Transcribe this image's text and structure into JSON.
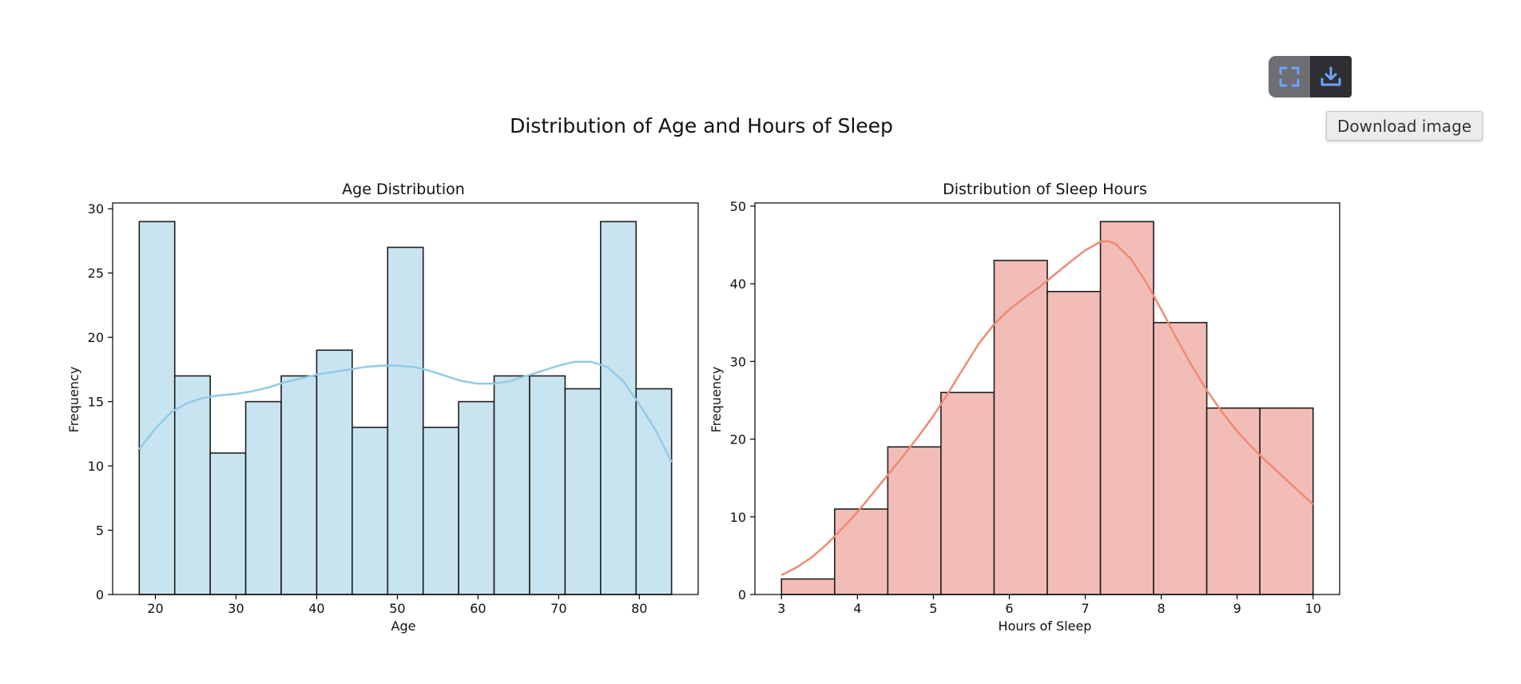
{
  "figure": {
    "suptitle": "Distribution of Age and Hours of Sleep"
  },
  "toolbar": {
    "expand_icon": "fullscreen-icon",
    "download_icon": "download-icon",
    "tooltip": "Download image",
    "icon_color": "#6ba4ff"
  },
  "chart_data": [
    {
      "type": "bar",
      "title": "Age Distribution",
      "xlabel": "Age",
      "ylabel": "Frequency",
      "bin_edges": [
        18,
        22.4,
        26.8,
        31.2,
        35.6,
        40,
        44.4,
        48.8,
        53.2,
        57.6,
        62,
        66.4,
        70.8,
        75.2,
        79.6,
        84
      ],
      "values": [
        29,
        17,
        11,
        15,
        17,
        19,
        13,
        27,
        13,
        15,
        17,
        17,
        16,
        29,
        16
      ],
      "xlim": [
        14.7,
        87.3
      ],
      "ylim": [
        0,
        30.45
      ],
      "xticks": [
        20,
        30,
        40,
        50,
        60,
        70,
        80
      ],
      "yticks": [
        0,
        5,
        10,
        15,
        20,
        25,
        30
      ],
      "kde": {
        "x": [
          18,
          20,
          22,
          24,
          26,
          28,
          30,
          32,
          34,
          36,
          38,
          40,
          42,
          44,
          46,
          48,
          50,
          52,
          54,
          56,
          58,
          60,
          62,
          64,
          66,
          68,
          70,
          72,
          74,
          76,
          78,
          80,
          82,
          84
        ],
        "y": [
          11.3,
          12.9,
          14.2,
          14.9,
          15.3,
          15.5,
          15.6,
          15.8,
          16.1,
          16.5,
          16.8,
          17.1,
          17.3,
          17.5,
          17.7,
          17.8,
          17.8,
          17.7,
          17.4,
          17.0,
          16.6,
          16.4,
          16.4,
          16.6,
          17.0,
          17.4,
          17.8,
          18.1,
          18.1,
          17.7,
          16.6,
          14.8,
          12.8,
          10.3
        ]
      },
      "fill": "#c8e4f0",
      "line_color": "#93cbe6",
      "edge_color": "#1f1f1f"
    },
    {
      "type": "bar",
      "title": "Distribution of Sleep Hours",
      "xlabel": "Hours of Sleep",
      "ylabel": "Frequency",
      "bin_edges": [
        3,
        3.7,
        4.4,
        5.1,
        5.8,
        6.5,
        7.2,
        7.9,
        8.6,
        9.3,
        10
      ],
      "values": [
        2,
        11,
        19,
        26,
        43,
        39,
        48,
        35,
        24,
        24
      ],
      "xlim": [
        2.65,
        10.35
      ],
      "ylim": [
        0,
        50.4
      ],
      "xticks": [
        3,
        4,
        5,
        6,
        7,
        8,
        9,
        10
      ],
      "yticks": [
        0,
        10,
        20,
        30,
        40,
        50
      ],
      "kde": {
        "x": [
          3,
          3.2,
          3.4,
          3.6,
          3.8,
          4,
          4.2,
          4.4,
          4.6,
          4.8,
          5,
          5.2,
          5.4,
          5.6,
          5.8,
          6,
          6.2,
          6.4,
          6.6,
          6.8,
          7,
          7.2,
          7.3,
          7.4,
          7.6,
          7.8,
          8,
          8.2,
          8.4,
          8.6,
          8.8,
          9,
          9.2,
          9.4,
          9.6,
          9.8,
          10
        ],
        "y": [
          2.5,
          3.5,
          4.8,
          6.5,
          8.5,
          10.6,
          13.0,
          15.4,
          17.8,
          20.3,
          23.0,
          26.0,
          29.2,
          32.3,
          34.8,
          36.7,
          38.2,
          39.6,
          41.2,
          42.8,
          44.3,
          45.4,
          45.5,
          45.1,
          43.2,
          40.2,
          36.7,
          33.0,
          29.5,
          26.3,
          23.5,
          21.0,
          18.9,
          17.0,
          15.2,
          13.4,
          11.6
        ]
      },
      "fill": "#f2bdb6",
      "line_color": "#ee8a75",
      "edge_color": "#1f1f1f"
    }
  ]
}
